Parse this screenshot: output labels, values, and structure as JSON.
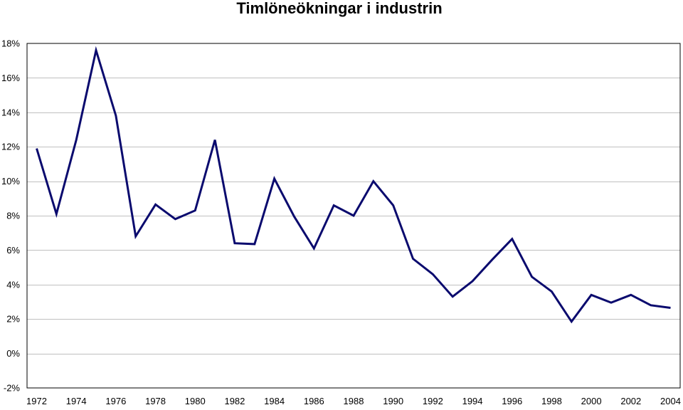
{
  "chart_data": {
    "type": "line",
    "title": "Timlöneökningar i industrin",
    "xlabel": "",
    "ylabel": "",
    "x": [
      1972,
      1973,
      1974,
      1975,
      1976,
      1977,
      1978,
      1979,
      1980,
      1981,
      1982,
      1983,
      1984,
      1985,
      1986,
      1987,
      1988,
      1989,
      1990,
      1991,
      1992,
      1993,
      1994,
      1995,
      1996,
      1997,
      1998,
      1999,
      2000,
      2001,
      2002,
      2003,
      2004
    ],
    "series": [
      {
        "values": [
          11.9,
          8.1,
          12.4,
          17.6,
          13.8,
          6.8,
          8.65,
          7.8,
          8.3,
          12.4,
          6.4,
          6.35,
          10.15,
          7.95,
          6.1,
          8.6,
          8.0,
          10.0,
          8.6,
          5.5,
          4.6,
          3.3,
          4.2,
          5.45,
          6.65,
          4.45,
          3.6,
          1.85,
          3.4,
          2.95,
          3.4,
          2.8,
          2.65
        ],
        "color": "#0a0a6e"
      }
    ],
    "ylim": [
      -2,
      18
    ],
    "yticks": [
      -2,
      0,
      2,
      4,
      6,
      8,
      10,
      12,
      14,
      16,
      18
    ],
    "ytick_labels": [
      "-2%",
      "0%",
      "2%",
      "4%",
      "6%",
      "8%",
      "10%",
      "12%",
      "14%",
      "16%",
      "18%"
    ],
    "xtick_labels": [
      "1972",
      "1974",
      "1976",
      "1978",
      "1980",
      "1982",
      "1984",
      "1986",
      "1988",
      "1990",
      "1992",
      "1994",
      "1996",
      "1998",
      "2000",
      "2002",
      "2004"
    ],
    "grid": true,
    "legend": "none"
  }
}
